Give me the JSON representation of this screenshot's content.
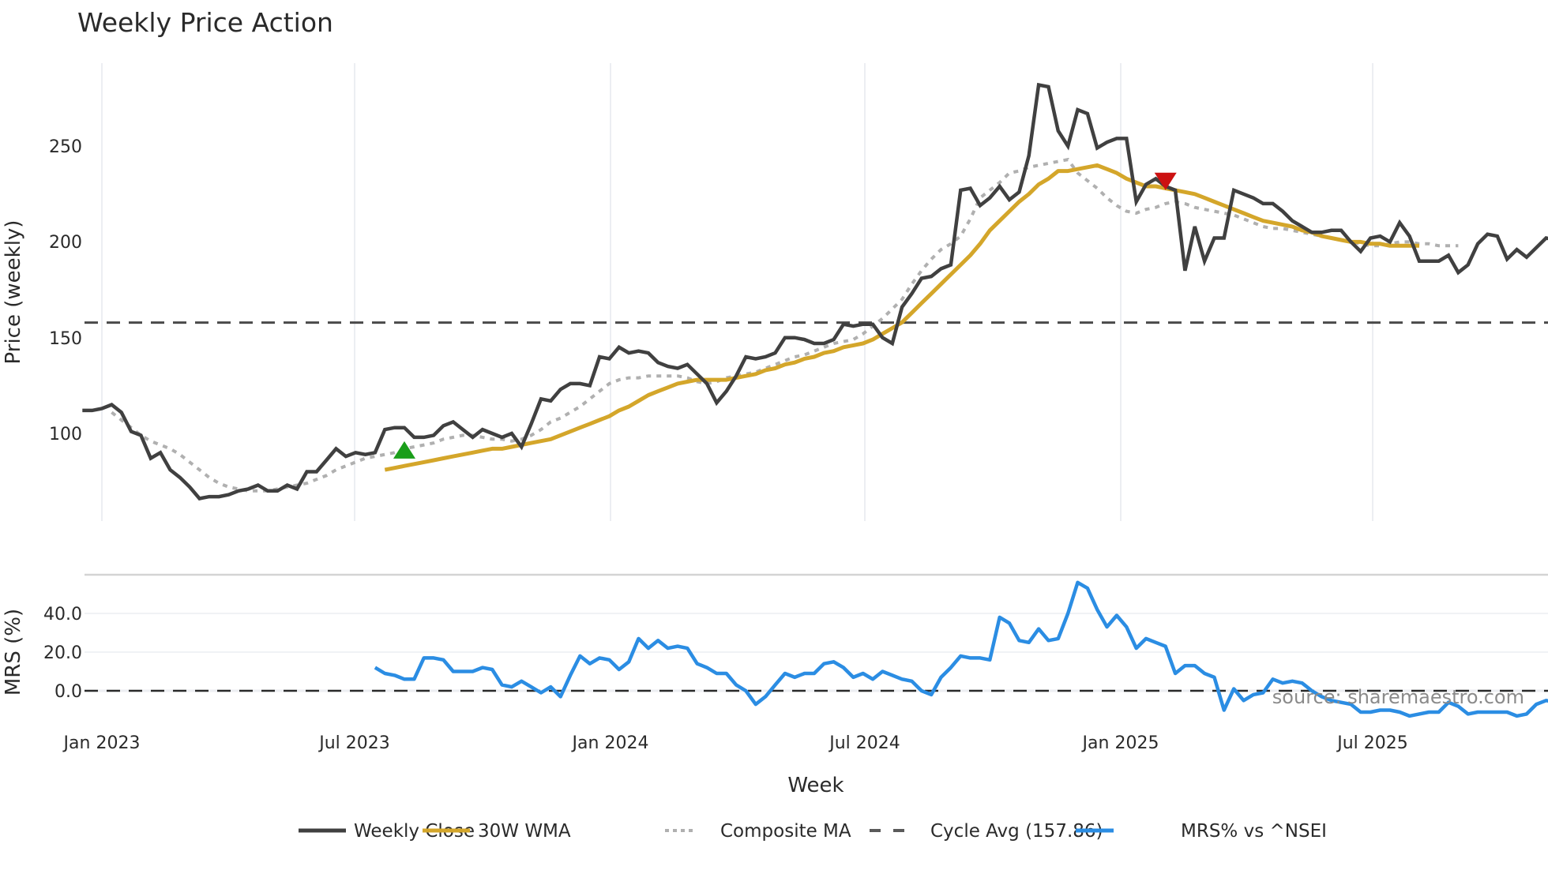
{
  "chart_data": [
    {
      "type": "line",
      "title": "Weekly Price Action",
      "xlabel": "Week",
      "ylabel": "Price (weekly)",
      "ylim": [
        45,
        290
      ],
      "yticks": [
        100,
        150,
        200,
        250
      ],
      "xticks": [
        "Jan 2023",
        "Jul 2023",
        "Jan 2024",
        "Jul 2024",
        "Jan 2025",
        "Jul 2025"
      ],
      "grid": true,
      "x_start_week_offset": -2,
      "series": [
        {
          "name": "Weekly Close",
          "color": "#404040",
          "start_week": -2,
          "values": [
            112,
            112,
            113,
            115,
            111,
            101,
            99,
            87,
            90,
            81,
            77,
            72,
            66,
            67,
            67,
            68,
            70,
            71,
            73,
            70,
            70,
            73,
            71,
            80,
            80,
            86,
            92,
            88,
            90,
            89,
            90,
            102,
            103,
            103,
            98,
            98,
            99,
            104,
            106,
            102,
            98,
            102,
            100,
            98,
            100,
            93,
            105,
            118,
            117,
            123,
            126,
            126,
            125,
            140,
            139,
            145,
            142,
            143,
            142,
            137,
            135,
            134,
            136,
            131,
            126,
            116,
            122,
            130,
            140,
            139,
            140,
            142,
            150,
            150,
            149,
            147,
            147,
            149,
            157,
            156,
            157,
            157,
            150,
            147,
            166,
            173,
            181,
            182,
            186,
            188,
            227,
            228,
            219,
            223,
            229,
            222,
            226,
            245,
            282,
            281,
            258,
            250,
            269,
            267,
            249,
            252,
            254,
            254,
            221,
            230,
            233,
            229,
            227,
            185,
            208,
            190,
            202,
            202,
            227,
            225,
            223,
            220,
            220,
            216,
            211,
            208,
            205,
            205,
            206,
            206,
            200,
            195,
            202,
            203,
            200,
            210,
            203,
            190,
            190,
            190,
            193,
            184,
            188,
            199,
            204,
            203,
            191,
            196,
            192,
            197,
            202,
            201
          ]
        },
        {
          "name": "30W WMA",
          "color": "#d4a62a",
          "start_week": 29,
          "values": [
            81,
            82,
            83,
            84,
            85,
            86,
            87,
            88,
            89,
            90,
            91,
            92,
            92,
            93,
            94,
            95,
            96,
            97,
            99,
            101,
            103,
            105,
            107,
            109,
            112,
            114,
            117,
            120,
            122,
            124,
            126,
            127,
            128,
            128,
            128,
            128,
            129,
            130,
            131,
            133,
            134,
            136,
            137,
            139,
            140,
            142,
            143,
            145,
            146,
            147,
            149,
            152,
            155,
            158,
            163,
            168,
            173,
            178,
            183,
            188,
            193,
            199,
            206,
            211,
            216,
            221,
            225,
            230,
            233,
            237,
            237,
            238,
            239,
            240,
            238,
            236,
            233,
            231,
            229,
            229,
            228,
            227,
            226,
            225,
            223,
            221,
            219,
            217,
            215,
            213,
            211,
            210,
            209,
            208,
            206,
            205,
            203,
            202,
            201,
            200,
            200,
            199,
            199,
            198,
            198,
            198,
            198
          ]
        },
        {
          "name": "Composite MA",
          "color": "#b0b0b0",
          "start_week": 1,
          "values": [
            111,
            107,
            103,
            99,
            96,
            94,
            92,
            89,
            85,
            81,
            77,
            74,
            72,
            71,
            70,
            70,
            70,
            71,
            72,
            73,
            74,
            76,
            78,
            81,
            83,
            85,
            87,
            88,
            89,
            90,
            92,
            93,
            94,
            95,
            97,
            98,
            99,
            99,
            98,
            97,
            97,
            96,
            97,
            99,
            102,
            106,
            108,
            111,
            114,
            118,
            122,
            126,
            128,
            129,
            129,
            130,
            130,
            130,
            130,
            129,
            127,
            126,
            127,
            129,
            130,
            131,
            132,
            134,
            136,
            138,
            140,
            141,
            143,
            145,
            147,
            148,
            149,
            152,
            156,
            160,
            165,
            170,
            178,
            185,
            191,
            196,
            199,
            203,
            212,
            223,
            227,
            231,
            236,
            237,
            239,
            240,
            241,
            242,
            243,
            236,
            232,
            228,
            223,
            219,
            216,
            215,
            217,
            218,
            220,
            221,
            220,
            218,
            217,
            216,
            215,
            214,
            212,
            210,
            208,
            207,
            207,
            206,
            205,
            204,
            203,
            202,
            201,
            200,
            199,
            198,
            198,
            199,
            200,
            200,
            199,
            199,
            198,
            198,
            198
          ]
        },
        {
          "name": "Cycle Avg (157.86)",
          "color": "#4a4a4a",
          "value": 157.86,
          "style": "dashed"
        }
      ],
      "markers": [
        {
          "type": "buy",
          "shape": "triangle-up",
          "color": "#1a9e1a",
          "week": 31,
          "price": 91
        },
        {
          "type": "sell",
          "shape": "triangle-down",
          "color": "#cc1111",
          "week": 109,
          "price": 232
        }
      ]
    },
    {
      "type": "line",
      "title": "",
      "xlabel": "Week",
      "ylabel": "MRS (%)",
      "ylim": [
        -20,
        58
      ],
      "yticks": [
        0.0,
        20.0,
        40.0
      ],
      "ytick_labels": [
        "0.0",
        "20.0",
        "40.0"
      ],
      "series": [
        {
          "name": "MRS% vs ^NSEI",
          "color": "#2b8de3",
          "start_week": 28,
          "values": [
            12,
            9,
            8,
            6,
            6,
            17,
            17,
            16,
            10,
            10,
            10,
            12,
            11,
            3,
            2,
            5,
            2,
            -1,
            2,
            -3,
            8,
            18,
            14,
            17,
            16,
            11,
            15,
            27,
            22,
            26,
            22,
            23,
            22,
            14,
            12,
            9,
            9,
            3,
            0,
            -7,
            -3,
            3,
            9,
            7,
            9,
            9,
            14,
            15,
            12,
            7,
            9,
            6,
            10,
            8,
            6,
            5,
            0,
            -2,
            7,
            12,
            18,
            17,
            17,
            16,
            38,
            35,
            26,
            25,
            32,
            26,
            27,
            40,
            56,
            53,
            42,
            33,
            39,
            33,
            22,
            27,
            25,
            23,
            9,
            13,
            13,
            9,
            7,
            -10,
            1,
            -5,
            -2,
            -1,
            6,
            4,
            5,
            4,
            0,
            -3,
            -5,
            -6,
            -7,
            -11,
            -11,
            -10,
            -10,
            -11,
            -13,
            -12,
            -11,
            -11,
            -6,
            -8,
            -12,
            -11,
            -11,
            -11,
            -11,
            -13,
            -12,
            -7,
            -5,
            -6,
            -4,
            -9,
            -8,
            -10,
            -7,
            -5,
            -4
          ]
        },
        {
          "name": "zero line",
          "value": 0,
          "style": "dashed",
          "color": "#2a2a2a"
        }
      ],
      "annotation": "source: sharemaestro.com"
    }
  ],
  "header": {
    "title": "Weekly Price Action"
  },
  "axes": {
    "price_ylabel": "Price (weekly)",
    "mrs_ylabel": "MRS (%)",
    "xlabel": "Week",
    "price_ticks": [
      "250",
      "200",
      "150",
      "100"
    ],
    "mrs_ticks": [
      "40.0",
      "20.0",
      "0.0"
    ],
    "x_ticks": [
      "Jan 2023",
      "Jul 2023",
      "Jan 2024",
      "Jul 2024",
      "Jan 2025",
      "Jul 2025"
    ]
  },
  "annotation": {
    "source": "source: sharemaestro.com"
  },
  "legend": {
    "items": [
      {
        "label": "Weekly Close",
        "color": "#404040",
        "style": "solid"
      },
      {
        "label": "30W WMA",
        "color": "#d4a62a",
        "style": "solid"
      },
      {
        "label": "Composite MA",
        "color": "#b0b0b0",
        "style": "dotted"
      },
      {
        "label": "Cycle Avg (157.86)",
        "color": "#5a5a5a",
        "style": "dashed"
      },
      {
        "label": "MRS% vs ^NSEI",
        "color": "#2b8de3",
        "style": "solid"
      }
    ]
  },
  "colors": {
    "close": "#404040",
    "wma": "#d4a62a",
    "composite": "#b0b0b0",
    "cycle": "#4a4a4a",
    "mrs": "#2b8de3",
    "buy": "#1a9e1a",
    "sell": "#cc1111",
    "grid": "#eceef2"
  }
}
